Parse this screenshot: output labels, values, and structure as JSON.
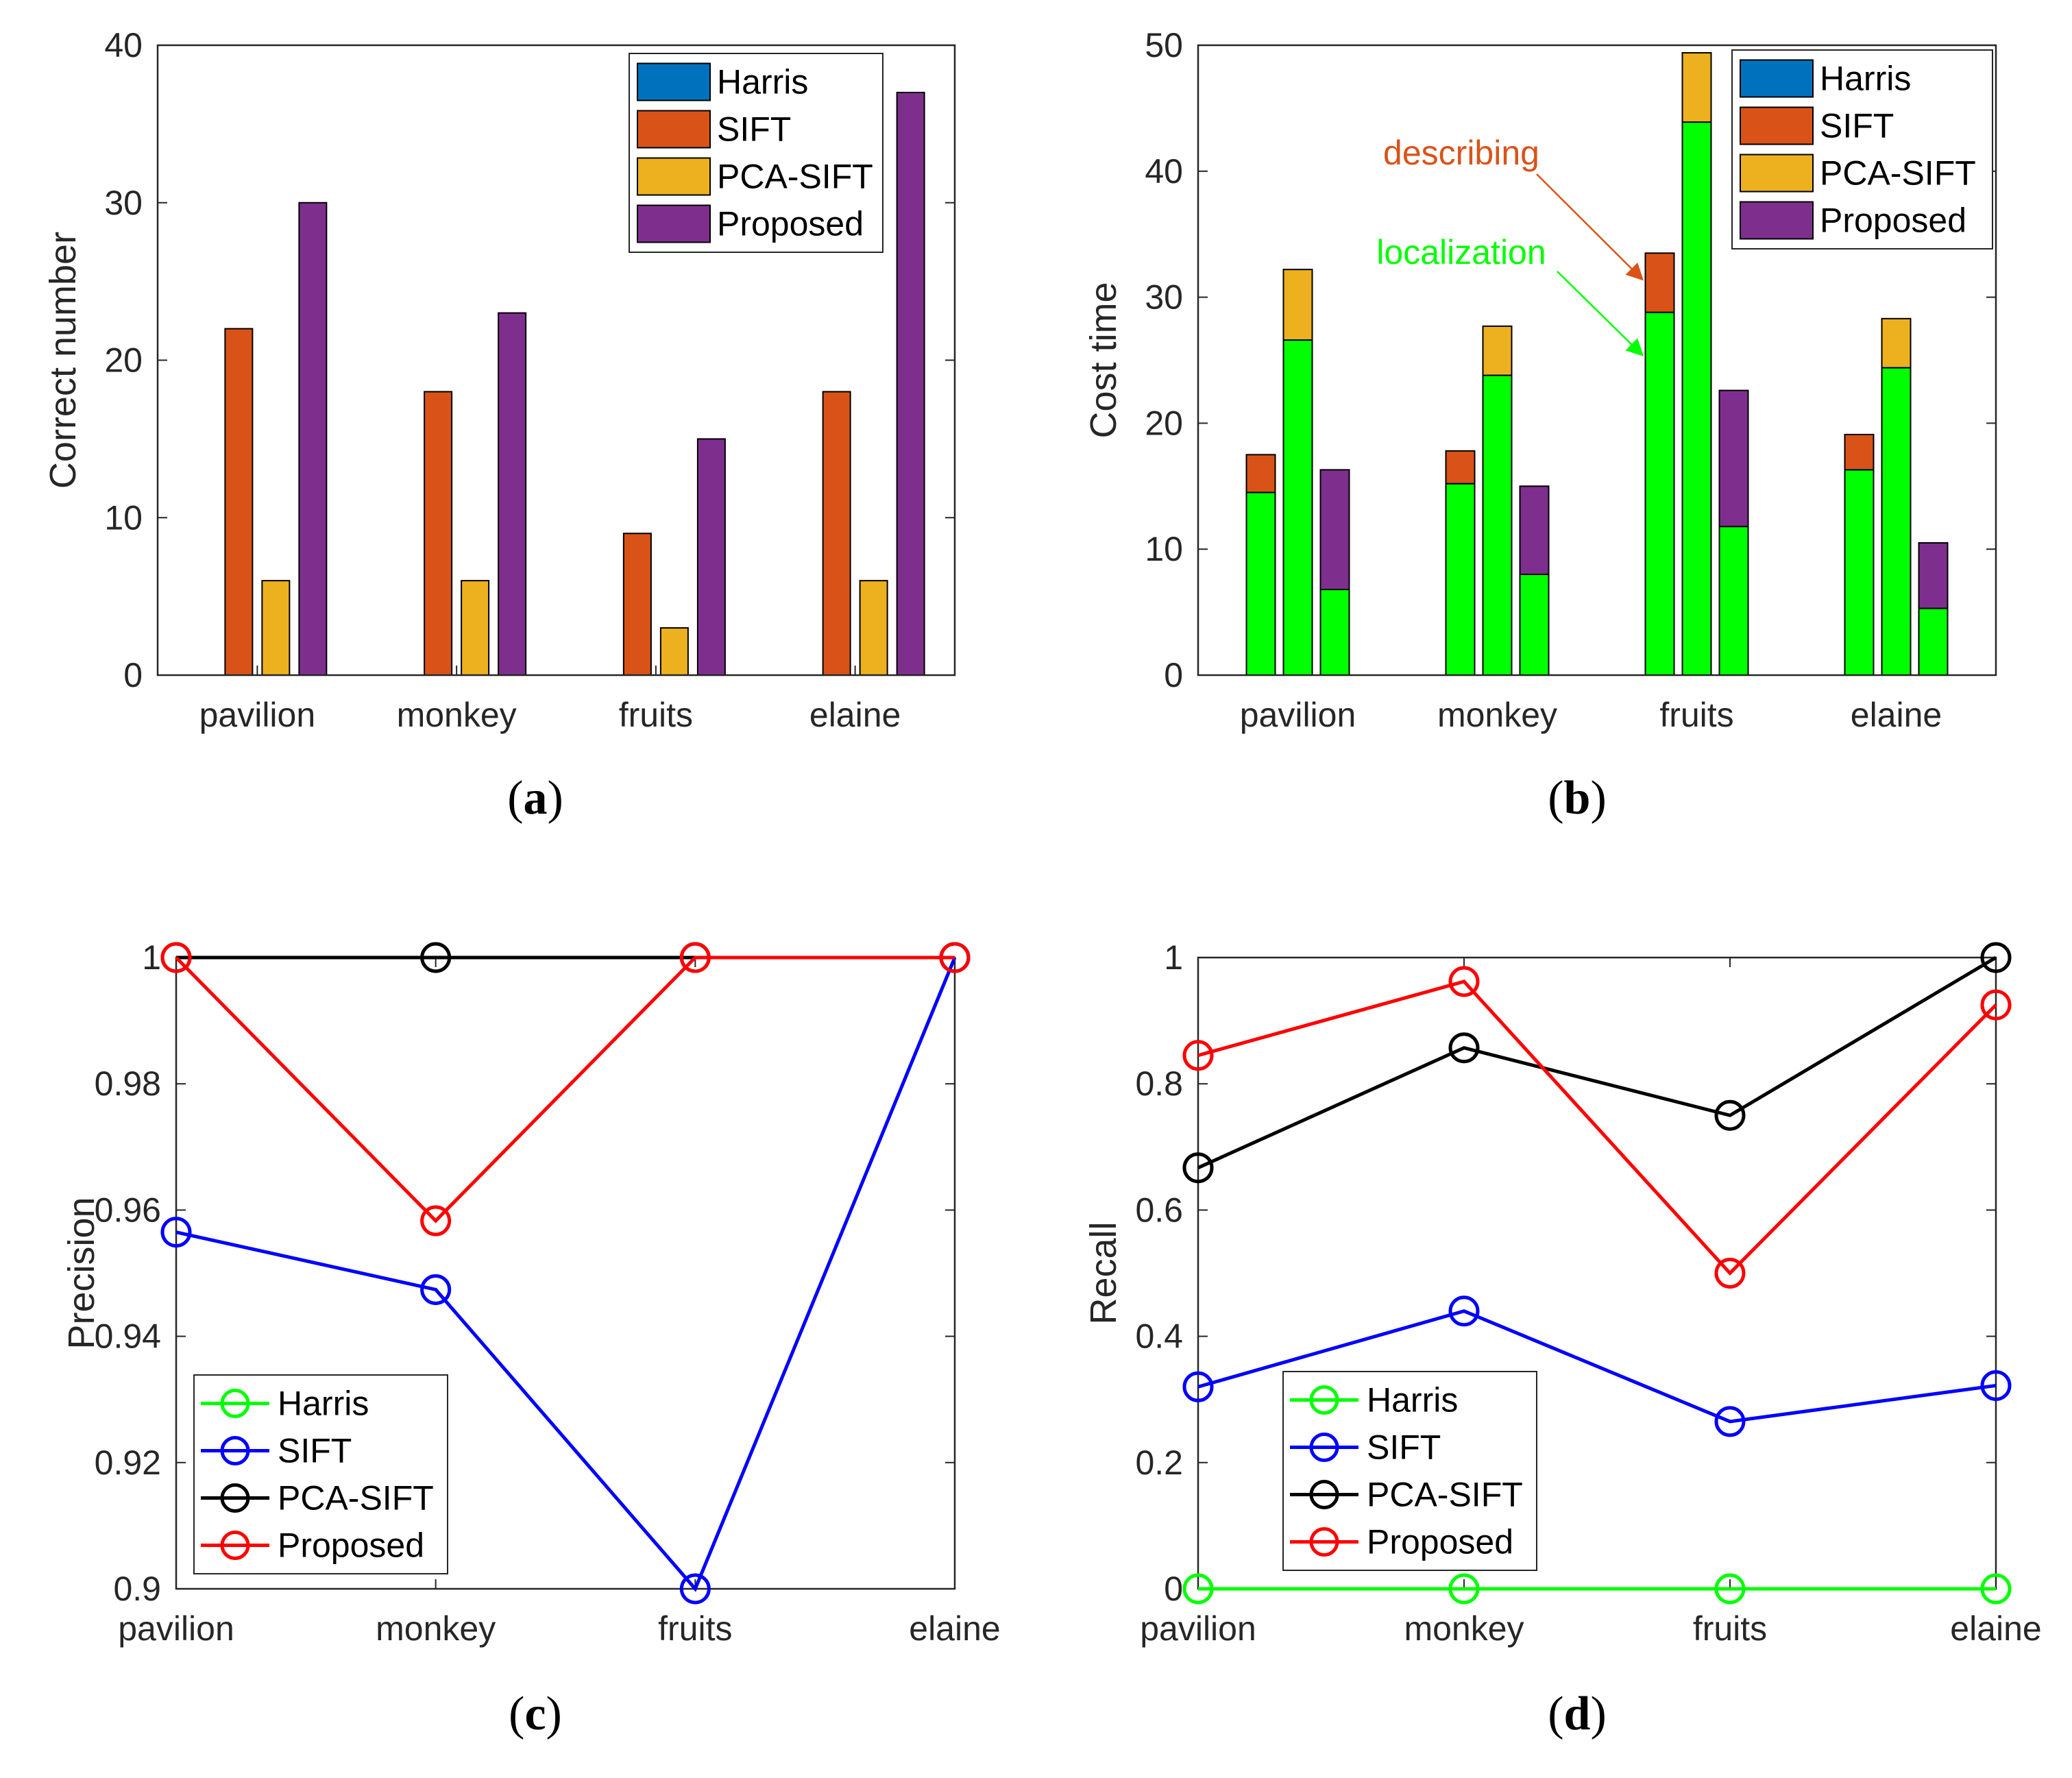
{
  "chart_data": [
    {
      "id": "a",
      "panel_label": "a",
      "type": "bar",
      "title": "",
      "xlabel": "",
      "ylabel": "Correct number",
      "ylim": [
        0,
        40
      ],
      "yticks": [
        0,
        10,
        20,
        30,
        40
      ],
      "categories": [
        "pavilion",
        "monkey",
        "fruits",
        "elaine"
      ],
      "legend_position": "top-right",
      "series": [
        {
          "name": "Harris",
          "color": "#0072BD",
          "values": [
            0,
            0,
            0,
            0
          ]
        },
        {
          "name": "SIFT",
          "color": "#D95319",
          "values": [
            22,
            18,
            9,
            18
          ]
        },
        {
          "name": "PCA-SIFT",
          "color": "#EDB120",
          "values": [
            6,
            6,
            3,
            6
          ]
        },
        {
          "name": "Proposed",
          "color": "#7E2F8E",
          "values": [
            30,
            23,
            15,
            37
          ]
        }
      ]
    },
    {
      "id": "b",
      "panel_label": "b",
      "type": "bar",
      "stacked": true,
      "title": "",
      "xlabel": "",
      "ylabel": "Cost time",
      "ylim": [
        0,
        50
      ],
      "yticks": [
        0,
        10,
        20,
        30,
        40,
        50
      ],
      "categories": [
        "pavilion",
        "monkey",
        "fruits",
        "elaine"
      ],
      "legend_position": "top-right",
      "legend": [
        {
          "name": "Harris",
          "color": "#0072BD"
        },
        {
          "name": "SIFT",
          "color": "#D95319"
        },
        {
          "name": "PCA-SIFT",
          "color": "#EDB120"
        },
        {
          "name": "Proposed",
          "color": "#7E2F8E"
        }
      ],
      "localization_color": "#00FF00",
      "bars": [
        {
          "method": "SIFT",
          "color": "#D95319",
          "localization": [
            14.5,
            15.2,
            28.8,
            16.3
          ],
          "total": [
            17.5,
            17.8,
            33.5,
            19.1
          ]
        },
        {
          "method": "PCA-SIFT",
          "color": "#EDB120",
          "localization": [
            26.6,
            23.8,
            43.9,
            24.4
          ],
          "total": [
            32.2,
            27.7,
            49.4,
            28.3
          ]
        },
        {
          "method": "Proposed",
          "color": "#7E2F8E",
          "localization": [
            6.8,
            8.0,
            11.8,
            5.3
          ],
          "total": [
            16.3,
            15.0,
            22.6,
            10.5
          ]
        }
      ],
      "annotations": [
        {
          "text": "describing",
          "color": "#D95319"
        },
        {
          "text": "localization",
          "color": "#00FF00"
        }
      ]
    },
    {
      "id": "c",
      "panel_label": "c",
      "type": "line",
      "title": "",
      "xlabel": "",
      "ylabel": "Precision",
      "ylim": [
        0.9,
        1.0
      ],
      "yticks": [
        "0.9",
        "0.92",
        "0.94",
        "0.96",
        "0.98",
        "1"
      ],
      "categories": [
        "pavilion",
        "monkey",
        "fruits",
        "elaine"
      ],
      "legend_position": "bottom-left",
      "series": [
        {
          "name": "Harris",
          "color": "#00FF00",
          "values": [
            null,
            null,
            null,
            null
          ]
        },
        {
          "name": "SIFT",
          "color": "#0000FF",
          "values": [
            0.9565,
            0.9474,
            0.9,
            1.0
          ]
        },
        {
          "name": "PCA-SIFT",
          "color": "#000000",
          "values": [
            1.0,
            1.0,
            1.0,
            1.0
          ]
        },
        {
          "name": "Proposed",
          "color": "#FF0000",
          "values": [
            1.0,
            0.9583,
            1.0,
            1.0
          ]
        }
      ]
    },
    {
      "id": "d",
      "panel_label": "d",
      "type": "line",
      "title": "",
      "xlabel": "",
      "ylabel": "Recall",
      "ylim": [
        0,
        1
      ],
      "yticks": [
        "0",
        "0.2",
        "0.4",
        "0.6",
        "0.8",
        "1"
      ],
      "categories": [
        "pavilion",
        "monkey",
        "fruits",
        "elaine"
      ],
      "legend_position": "bottom-left",
      "series": [
        {
          "name": "Harris",
          "color": "#00FF00",
          "values": [
            0,
            0,
            0,
            0
          ]
        },
        {
          "name": "SIFT",
          "color": "#0000FF",
          "values": [
            0.32,
            0.44,
            0.265,
            0.322
          ]
        },
        {
          "name": "PCA-SIFT",
          "color": "#000000",
          "values": [
            0.667,
            0.857,
            0.75,
            1.0
          ]
        },
        {
          "name": "Proposed",
          "color": "#FF0000",
          "values": [
            0.845,
            0.962,
            0.5,
            0.925
          ]
        }
      ]
    }
  ]
}
